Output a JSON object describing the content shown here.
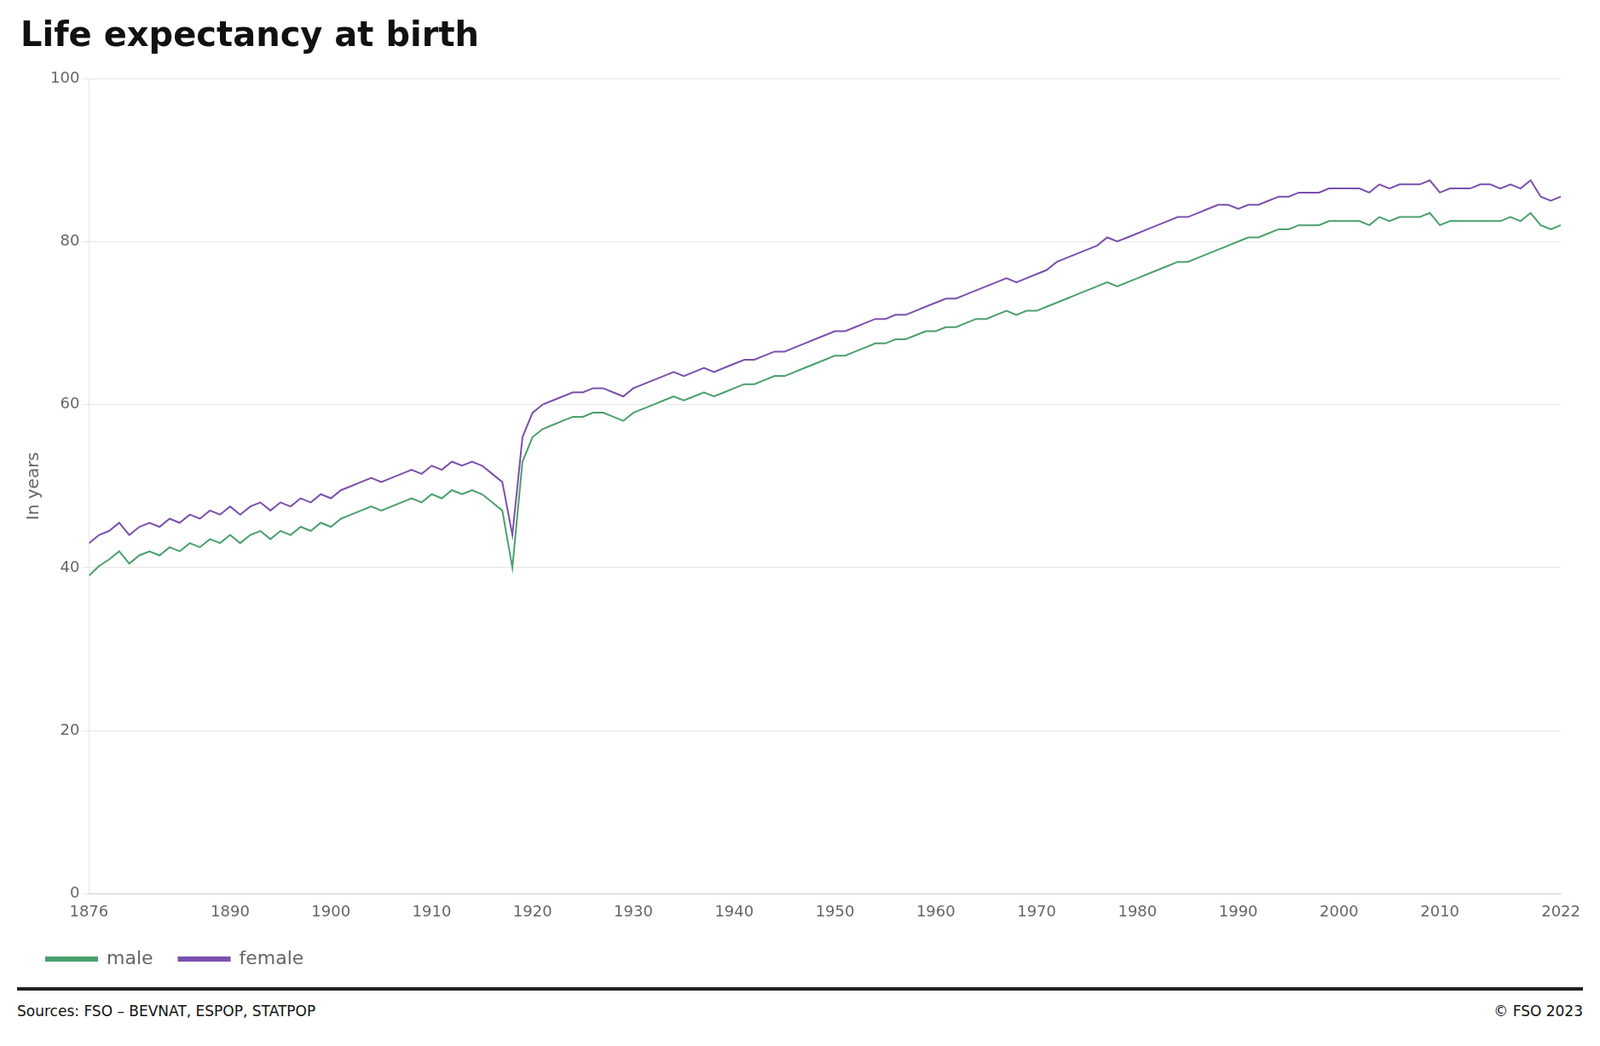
{
  "chart_data": {
    "type": "line",
    "title": "Life expectancy at birth",
    "y_label": "In years",
    "source": "Sources: FSO – BEVNAT, ESPOP, STATPOP",
    "credit": "© FSO 2023",
    "xlim": [
      1876,
      2022
    ],
    "ylim": [
      0,
      100
    ],
    "yticks": [
      0,
      20,
      40,
      60,
      80,
      100
    ],
    "xticks": [
      1876,
      1890,
      1900,
      1910,
      1920,
      1930,
      1940,
      1950,
      1960,
      1970,
      1980,
      1990,
      2000,
      2010,
      2022
    ],
    "grid": true,
    "legend": "bottom",
    "x": [
      1876,
      1877,
      1878,
      1879,
      1880,
      1881,
      1882,
      1883,
      1884,
      1885,
      1886,
      1887,
      1888,
      1889,
      1890,
      1891,
      1892,
      1893,
      1894,
      1895,
      1896,
      1897,
      1898,
      1899,
      1900,
      1901,
      1902,
      1903,
      1904,
      1905,
      1906,
      1907,
      1908,
      1909,
      1910,
      1911,
      1912,
      1913,
      1914,
      1915,
      1916,
      1917,
      1918,
      1919,
      1920,
      1921,
      1922,
      1923,
      1924,
      1925,
      1926,
      1927,
      1928,
      1929,
      1930,
      1931,
      1932,
      1933,
      1934,
      1935,
      1936,
      1937,
      1938,
      1939,
      1940,
      1941,
      1942,
      1943,
      1944,
      1945,
      1946,
      1947,
      1948,
      1949,
      1950,
      1951,
      1952,
      1953,
      1954,
      1955,
      1956,
      1957,
      1958,
      1959,
      1960,
      1961,
      1962,
      1963,
      1964,
      1965,
      1966,
      1967,
      1968,
      1969,
      1970,
      1971,
      1972,
      1973,
      1974,
      1975,
      1976,
      1977,
      1978,
      1979,
      1980,
      1981,
      1982,
      1983,
      1984,
      1985,
      1986,
      1987,
      1988,
      1989,
      1990,
      1991,
      1992,
      1993,
      1994,
      1995,
      1996,
      1997,
      1998,
      1999,
      2000,
      2001,
      2002,
      2003,
      2004,
      2005,
      2006,
      2007,
      2008,
      2009,
      2010,
      2011,
      2012,
      2013,
      2014,
      2015,
      2016,
      2017,
      2018,
      2019,
      2020,
      2021,
      2022
    ],
    "series": [
      {
        "name": "male",
        "color": "#4AA06C",
        "values": [
          39.0,
          40.2,
          41.0,
          42.0,
          40.5,
          41.5,
          42.0,
          41.5,
          42.5,
          42.0,
          43.0,
          42.5,
          43.5,
          43.0,
          44.0,
          43.0,
          44.0,
          44.5,
          43.5,
          44.5,
          44.0,
          45.0,
          44.5,
          45.5,
          45.0,
          46.0,
          46.5,
          47.0,
          47.5,
          47.0,
          47.5,
          48.0,
          48.5,
          48.0,
          49.0,
          48.5,
          49.5,
          49.0,
          49.5,
          49.0,
          48.0,
          47.0,
          40.0,
          53.0,
          56.0,
          57.0,
          57.5,
          58.0,
          58.5,
          58.5,
          59.0,
          59.0,
          58.5,
          58.0,
          59.0,
          59.5,
          60.0,
          60.5,
          61.0,
          60.5,
          61.0,
          61.5,
          61.0,
          61.5,
          62.0,
          62.5,
          62.5,
          63.0,
          63.5,
          63.5,
          64.0,
          64.5,
          65.0,
          65.5,
          66.0,
          66.0,
          66.5,
          67.0,
          67.5,
          67.5,
          68.0,
          68.0,
          68.5,
          69.0,
          69.0,
          69.5,
          69.5,
          70.0,
          70.5,
          70.5,
          71.0,
          71.5,
          71.0,
          71.5,
          71.5,
          72.0,
          72.5,
          73.0,
          73.5,
          74.0,
          74.5,
          75.0,
          74.5,
          75.0,
          75.5,
          76.0,
          76.5,
          77.0,
          77.5,
          77.5,
          78.0,
          78.5,
          79.0,
          79.5,
          80.0,
          80.5,
          80.5,
          81.0,
          81.5,
          81.5,
          82.0,
          82.0,
          82.0,
          82.5,
          82.5,
          82.5,
          82.5,
          82.0,
          83.0,
          82.5,
          83.0,
          83.0,
          83.0,
          83.5,
          82.0,
          82.5,
          82.5,
          82.5,
          82.5,
          82.5,
          82.5,
          83.0,
          82.5,
          83.5,
          82.0,
          81.5,
          82.0
        ]
      },
      {
        "name": "female",
        "color": "#7B50AE",
        "values": [
          43.0,
          44.0,
          44.5,
          45.5,
          44.0,
          45.0,
          45.5,
          45.0,
          46.0,
          45.5,
          46.5,
          46.0,
          47.0,
          46.5,
          47.5,
          46.5,
          47.5,
          48.0,
          47.0,
          48.0,
          47.5,
          48.5,
          48.0,
          49.0,
          48.5,
          49.5,
          50.0,
          50.5,
          51.0,
          50.5,
          51.0,
          51.5,
          52.0,
          51.5,
          52.5,
          52.0,
          53.0,
          52.5,
          53.0,
          52.5,
          51.5,
          50.5,
          44.0,
          56.0,
          59.0,
          60.0,
          60.5,
          61.0,
          61.5,
          61.5,
          62.0,
          62.0,
          61.5,
          61.0,
          62.0,
          62.5,
          63.0,
          63.5,
          64.0,
          63.5,
          64.0,
          64.5,
          64.0,
          64.5,
          65.0,
          65.5,
          65.5,
          66.0,
          66.5,
          66.5,
          67.0,
          67.5,
          68.0,
          68.5,
          69.0,
          69.0,
          69.5,
          70.0,
          70.5,
          70.5,
          71.0,
          71.0,
          71.5,
          72.0,
          72.5,
          73.0,
          73.0,
          73.5,
          74.0,
          74.5,
          75.0,
          75.5,
          75.0,
          75.5,
          76.0,
          76.5,
          77.5,
          78.0,
          78.5,
          79.0,
          79.5,
          80.5,
          80.0,
          80.5,
          81.0,
          81.5,
          82.0,
          82.5,
          83.0,
          83.0,
          83.5,
          84.0,
          84.5,
          84.5,
          84.0,
          84.5,
          84.5,
          85.0,
          85.5,
          85.5,
          86.0,
          86.0,
          86.0,
          86.5,
          86.5,
          86.5,
          86.5,
          86.0,
          87.0,
          86.5,
          87.0,
          87.0,
          87.0,
          87.5,
          86.0,
          86.5,
          86.5,
          86.5,
          87.0,
          87.0,
          86.5,
          87.0,
          86.5,
          87.5,
          85.5,
          85.0,
          85.5
        ]
      }
    ]
  }
}
